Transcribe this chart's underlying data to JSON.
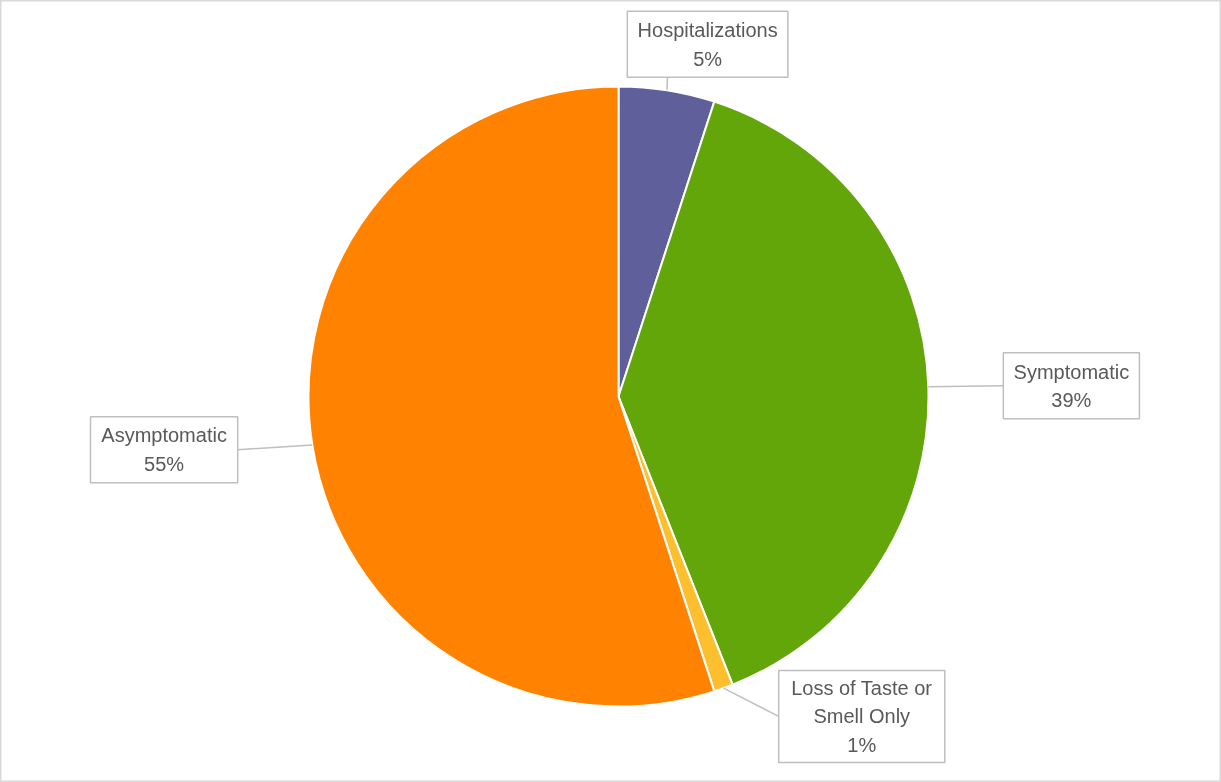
{
  "chart_data": {
    "type": "pie",
    "categories": [
      "Hospitalizations",
      "Symptomatic",
      "Loss of Taste or Smell Only",
      "Asymptomatic"
    ],
    "values": [
      5,
      39,
      1,
      55
    ],
    "colors": [
      "#5f5f9b",
      "#62a60a",
      "#fdbf2d",
      "#ff8300"
    ],
    "value_labels": [
      "5%",
      "39%",
      "1%",
      "55%"
    ]
  }
}
